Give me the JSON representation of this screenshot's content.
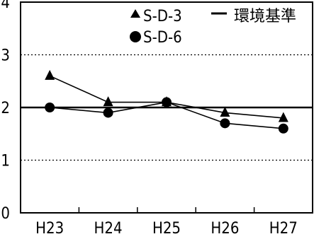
{
  "chart_data": {
    "type": "line",
    "categories": [
      "H23",
      "H24",
      "H25",
      "H26",
      "H27"
    ],
    "series": [
      {
        "name": "S-D-3",
        "marker": "triangle",
        "values": [
          2.6,
          2.1,
          2.1,
          1.9,
          1.8
        ]
      },
      {
        "name": "S-D-6",
        "marker": "circle",
        "values": [
          2.0,
          1.9,
          2.1,
          1.7,
          1.6
        ]
      }
    ],
    "reference_line": {
      "name": "環境基準",
      "value": 2
    },
    "ylim": [
      0,
      4
    ],
    "yticks": [
      0,
      1,
      2,
      3,
      4
    ],
    "grid": "dotted horizontal at 1 and 3",
    "legend_position": "top-right",
    "colors": {
      "series": "#000000",
      "grid": "#000000",
      "background": "#ffffff"
    }
  }
}
